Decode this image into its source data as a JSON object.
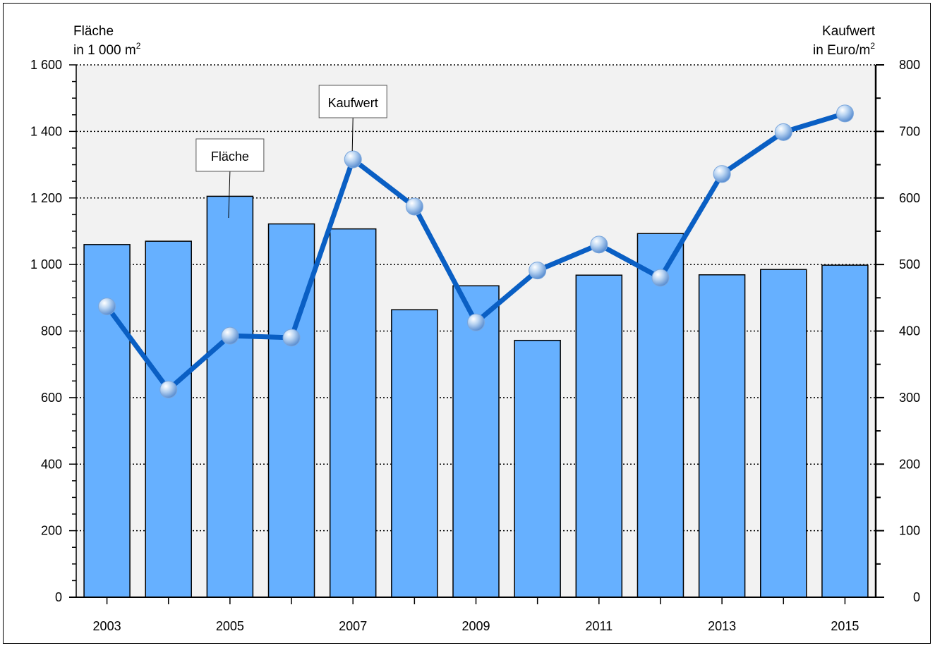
{
  "chart_data": {
    "type": "bar+line",
    "x": [
      "2003",
      "2004",
      "2005",
      "2006",
      "2007",
      "2008",
      "2009",
      "2010",
      "2011",
      "2012",
      "2013",
      "2014",
      "2015"
    ],
    "x_tick_labels": [
      "2003",
      "2005",
      "2007",
      "2009",
      "2011",
      "2013",
      "2015"
    ],
    "y_left": {
      "title_line1": "Fläche",
      "title_line2": "in 1 000 m",
      "title_sup": "2",
      "range": [
        0,
        1600
      ],
      "ticks": [
        "0",
        "200",
        "400",
        "600",
        "800",
        "1 000",
        "1 200",
        "1 400",
        "1 600"
      ]
    },
    "y_right": {
      "title_line1": "Kaufwert",
      "title_line2": "in Euro/m",
      "title_sup": "2",
      "range": [
        0,
        800
      ],
      "ticks": [
        "0",
        "100",
        "200",
        "300",
        "400",
        "500",
        "600",
        "700",
        "800"
      ]
    },
    "series": [
      {
        "name": "Fläche",
        "kind": "bar",
        "axis": "left",
        "color": "#66b0ff",
        "values": [
          1060,
          1070,
          1205,
          1122,
          1107,
          864,
          936,
          772,
          968,
          1093,
          969,
          985,
          998
        ]
      },
      {
        "name": "Kaufwert",
        "kind": "line",
        "axis": "right",
        "color": "#0a5fc4",
        "values": [
          437,
          312,
          393,
          390,
          658,
          587,
          413,
          491,
          530,
          480,
          636,
          699,
          727
        ]
      }
    ],
    "grid": "horizontal-dotted",
    "plot_background": "#f2f2f2",
    "callouts": [
      "Fläche",
      "Kaufwert"
    ]
  }
}
